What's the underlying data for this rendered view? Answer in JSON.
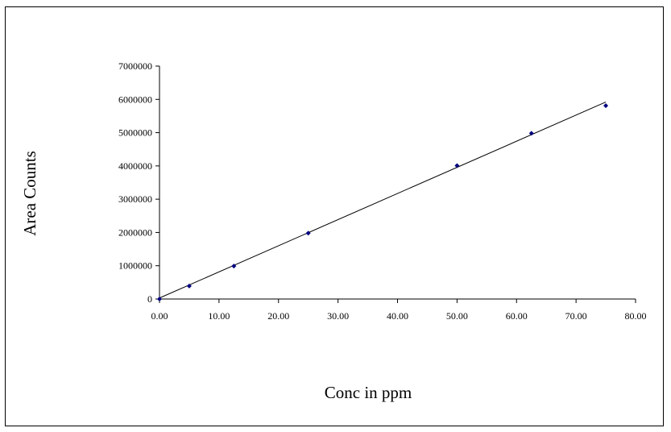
{
  "chart_data": {
    "type": "scatter",
    "title": "",
    "xlabel": "Conc in ppm",
    "ylabel": "Area Counts",
    "xlim": [
      0,
      80
    ],
    "ylim": [
      0,
      7000000
    ],
    "x_ticks": [
      "0.00",
      "10.00",
      "20.00",
      "30.00",
      "40.00",
      "50.00",
      "60.00",
      "70.00",
      "80.00"
    ],
    "y_ticks": [
      "0",
      "1000000",
      "2000000",
      "3000000",
      "4000000",
      "5000000",
      "6000000",
      "7000000"
    ],
    "grid": false,
    "legend": "none",
    "marker": "diamond",
    "marker_color": "#00007f",
    "trendline": {
      "type": "linear",
      "from": [
        0,
        30000
      ],
      "to": [
        75,
        5920000
      ],
      "color": "#000000"
    },
    "series": [
      {
        "x": [
          0,
          5,
          12.5,
          25,
          50,
          62.5,
          75
        ],
        "y": [
          0,
          390000,
          990000,
          1980000,
          4010000,
          4980000,
          5810000
        ]
      }
    ]
  }
}
